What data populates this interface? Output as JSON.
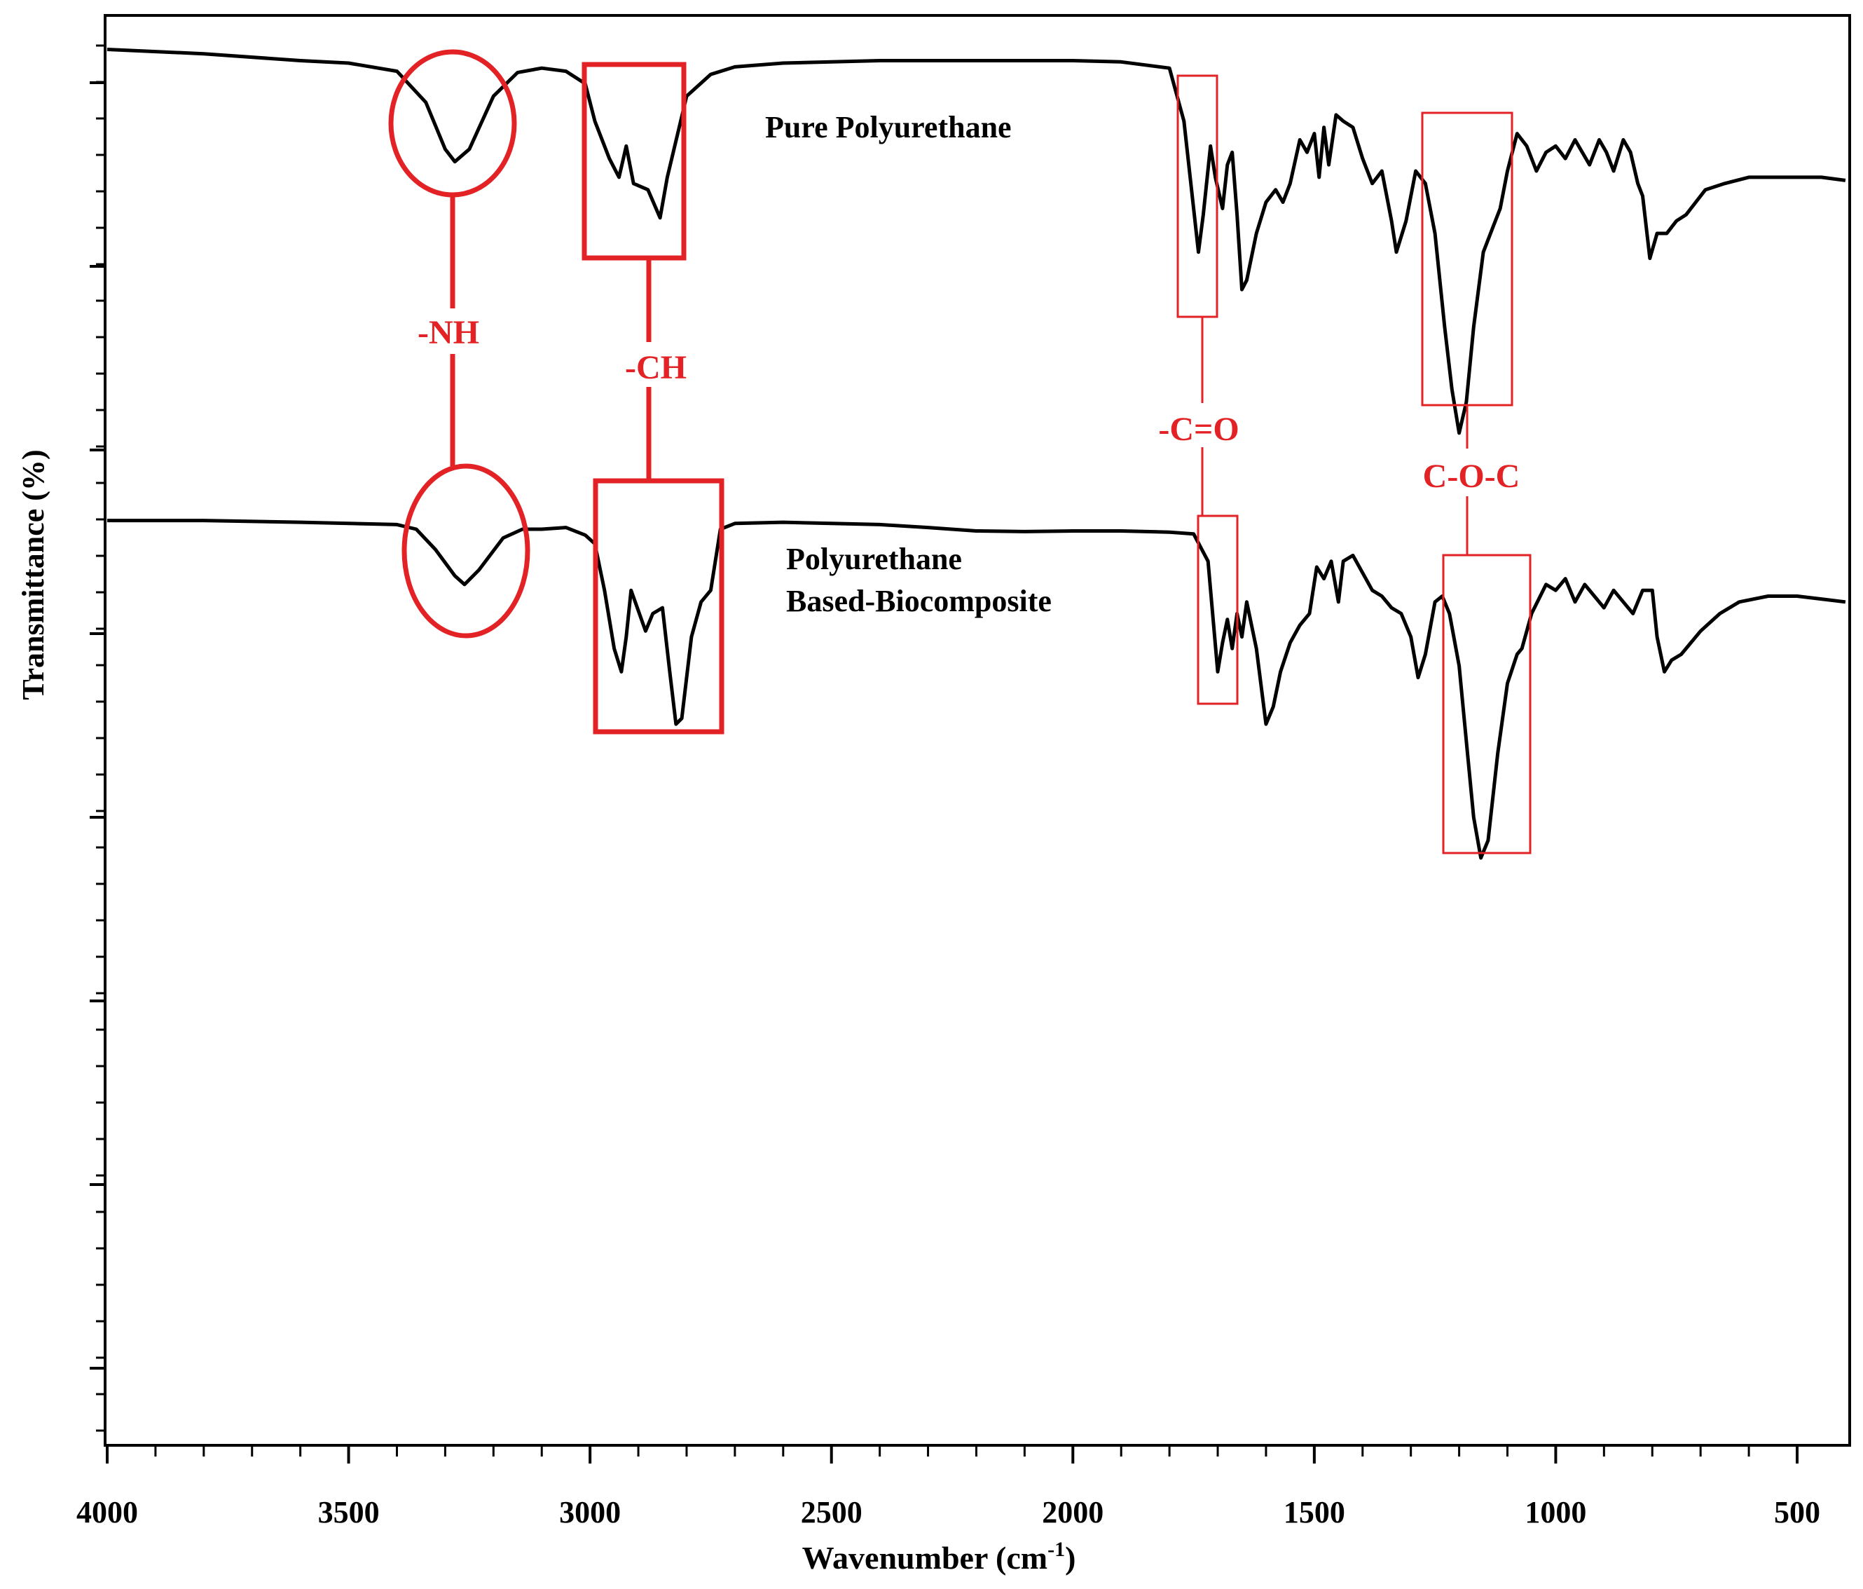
{
  "chart_data": {
    "type": "line",
    "title": "",
    "xlabel": "Wavenumber (cm",
    "xlabel_superscript": "-1",
    "xlabel_close": ")",
    "ylabel": "Transmittance (%)",
    "xlim": [
      4000,
      400
    ],
    "x_reversed": true,
    "x_tick_labels": [
      "4000",
      "3500",
      "3000",
      "2500",
      "2000",
      "1500",
      "1000",
      "500"
    ],
    "x_tick_values": [
      4000,
      3500,
      3000,
      2500,
      2000,
      1500,
      1000,
      500
    ],
    "y_tick_labels_shown": false,
    "grid": false,
    "legend": "none",
    "series": [
      {
        "name": "Pure Polyurethane",
        "color": "#000000",
        "label_lines": [
          "Pure Polyurethane"
        ],
        "points": [
          [
            4000,
            0.5
          ],
          [
            3800,
            1.2
          ],
          [
            3600,
            2.3
          ],
          [
            3500,
            2.7
          ],
          [
            3400,
            4.0
          ],
          [
            3340,
            9.0
          ],
          [
            3300,
            16.5
          ],
          [
            3280,
            18.5
          ],
          [
            3250,
            16.5
          ],
          [
            3200,
            8.0
          ],
          [
            3150,
            4.2
          ],
          [
            3100,
            3.5
          ],
          [
            3050,
            4.0
          ],
          [
            3010,
            6.0
          ],
          [
            2990,
            12.0
          ],
          [
            2960,
            18.0
          ],
          [
            2940,
            21.0
          ],
          [
            2925,
            16.0
          ],
          [
            2910,
            22.0
          ],
          [
            2880,
            23.0
          ],
          [
            2855,
            27.5
          ],
          [
            2840,
            21.0
          ],
          [
            2800,
            8.0
          ],
          [
            2750,
            4.5
          ],
          [
            2700,
            3.3
          ],
          [
            2600,
            2.7
          ],
          [
            2500,
            2.5
          ],
          [
            2400,
            2.3
          ],
          [
            2200,
            2.3
          ],
          [
            2000,
            2.3
          ],
          [
            1900,
            2.5
          ],
          [
            1800,
            3.5
          ],
          [
            1770,
            12.0
          ],
          [
            1740,
            33.0
          ],
          [
            1730,
            27.0
          ],
          [
            1715,
            16.0
          ],
          [
            1705,
            21.0
          ],
          [
            1690,
            26.0
          ],
          [
            1680,
            19.0
          ],
          [
            1670,
            17.0
          ],
          [
            1660,
            27.0
          ],
          [
            1650,
            39.0
          ],
          [
            1640,
            37.5
          ],
          [
            1620,
            30.0
          ],
          [
            1600,
            25.0
          ],
          [
            1580,
            23.0
          ],
          [
            1565,
            25.0
          ],
          [
            1550,
            22.0
          ],
          [
            1530,
            15.0
          ],
          [
            1515,
            17.0
          ],
          [
            1500,
            14.0
          ],
          [
            1490,
            21.0
          ],
          [
            1480,
            13.0
          ],
          [
            1470,
            19.0
          ],
          [
            1455,
            11.0
          ],
          [
            1440,
            12.0
          ],
          [
            1420,
            13.0
          ],
          [
            1400,
            18.0
          ],
          [
            1380,
            22.0
          ],
          [
            1360,
            20.0
          ],
          [
            1340,
            28.0
          ],
          [
            1330,
            33.0
          ],
          [
            1310,
            28.0
          ],
          [
            1290,
            20.0
          ],
          [
            1270,
            22.0
          ],
          [
            1250,
            30.0
          ],
          [
            1230,
            45.0
          ],
          [
            1215,
            55.0
          ],
          [
            1200,
            62.0
          ],
          [
            1185,
            57.0
          ],
          [
            1170,
            45.0
          ],
          [
            1150,
            33.0
          ],
          [
            1130,
            29.0
          ],
          [
            1115,
            26.0
          ],
          [
            1100,
            20.0
          ],
          [
            1080,
            14.0
          ],
          [
            1060,
            16.0
          ],
          [
            1040,
            20.0
          ],
          [
            1020,
            17.0
          ],
          [
            1000,
            16.0
          ],
          [
            980,
            18.0
          ],
          [
            960,
            15.0
          ],
          [
            945,
            17.0
          ],
          [
            930,
            19.0
          ],
          [
            910,
            15.0
          ],
          [
            895,
            17.0
          ],
          [
            880,
            20.0
          ],
          [
            860,
            15.0
          ],
          [
            845,
            17.0
          ],
          [
            830,
            22.0
          ],
          [
            820,
            24.0
          ],
          [
            805,
            34.0
          ],
          [
            790,
            30.0
          ],
          [
            770,
            30.0
          ],
          [
            750,
            28.0
          ],
          [
            730,
            27.0
          ],
          [
            710,
            25.0
          ],
          [
            690,
            23.0
          ],
          [
            650,
            22.0
          ],
          [
            600,
            21.0
          ],
          [
            550,
            21.0
          ],
          [
            500,
            21.0
          ],
          [
            450,
            21.0
          ],
          [
            400,
            21.5
          ]
        ]
      },
      {
        "name": "Polyurethane Based-Biocomposite",
        "color": "#000000",
        "label_lines": [
          "Polyurethane",
          "Based-Biocomposite"
        ],
        "points": [
          [
            4000,
            2.0
          ],
          [
            3800,
            2.0
          ],
          [
            3600,
            2.3
          ],
          [
            3400,
            2.7
          ],
          [
            3360,
            3.5
          ],
          [
            3320,
            7.0
          ],
          [
            3280,
            11.5
          ],
          [
            3260,
            13.0
          ],
          [
            3230,
            10.5
          ],
          [
            3180,
            5.0
          ],
          [
            3140,
            3.5
          ],
          [
            3100,
            3.5
          ],
          [
            3050,
            3.2
          ],
          [
            3010,
            4.5
          ],
          [
            2990,
            6.0
          ],
          [
            2970,
            14.0
          ],
          [
            2950,
            24.0
          ],
          [
            2935,
            28.0
          ],
          [
            2925,
            22.0
          ],
          [
            2915,
            14.0
          ],
          [
            2900,
            17.5
          ],
          [
            2885,
            21.0
          ],
          [
            2870,
            18.0
          ],
          [
            2850,
            17.0
          ],
          [
            2835,
            28.0
          ],
          [
            2822,
            37.0
          ],
          [
            2810,
            36.0
          ],
          [
            2790,
            22.0
          ],
          [
            2770,
            16.0
          ],
          [
            2750,
            14.0
          ],
          [
            2730,
            3.5
          ],
          [
            2700,
            2.5
          ],
          [
            2600,
            2.3
          ],
          [
            2500,
            2.5
          ],
          [
            2400,
            2.7
          ],
          [
            2300,
            3.2
          ],
          [
            2200,
            3.8
          ],
          [
            2100,
            3.9
          ],
          [
            2000,
            3.8
          ],
          [
            1900,
            3.8
          ],
          [
            1800,
            4.0
          ],
          [
            1750,
            4.3
          ],
          [
            1720,
            9.0
          ],
          [
            1700,
            28.0
          ],
          [
            1690,
            23.0
          ],
          [
            1680,
            19.0
          ],
          [
            1670,
            24.0
          ],
          [
            1660,
            18.0
          ],
          [
            1650,
            22.0
          ],
          [
            1640,
            16.0
          ],
          [
            1620,
            24.0
          ],
          [
            1600,
            37.0
          ],
          [
            1585,
            34.0
          ],
          [
            1570,
            28.0
          ],
          [
            1550,
            23.0
          ],
          [
            1530,
            20.0
          ],
          [
            1510,
            18.0
          ],
          [
            1495,
            10.0
          ],
          [
            1480,
            12.0
          ],
          [
            1465,
            9.0
          ],
          [
            1450,
            16.0
          ],
          [
            1440,
            9.0
          ],
          [
            1420,
            8.0
          ],
          [
            1400,
            11.0
          ],
          [
            1380,
            14.0
          ],
          [
            1360,
            15.0
          ],
          [
            1340,
            17.0
          ],
          [
            1320,
            18.0
          ],
          [
            1300,
            22.0
          ],
          [
            1285,
            29.0
          ],
          [
            1270,
            25.0
          ],
          [
            1250,
            16.0
          ],
          [
            1235,
            15.0
          ],
          [
            1220,
            18.0
          ],
          [
            1200,
            27.0
          ],
          [
            1185,
            40.0
          ],
          [
            1170,
            53.0
          ],
          [
            1155,
            60.0
          ],
          [
            1140,
            57.0
          ],
          [
            1120,
            42.0
          ],
          [
            1100,
            30.0
          ],
          [
            1080,
            25.0
          ],
          [
            1070,
            24.0
          ],
          [
            1050,
            18.0
          ],
          [
            1020,
            13.0
          ],
          [
            1000,
            14.0
          ],
          [
            980,
            12.0
          ],
          [
            960,
            16.0
          ],
          [
            940,
            13.0
          ],
          [
            920,
            15.0
          ],
          [
            900,
            17.0
          ],
          [
            880,
            14.0
          ],
          [
            860,
            16.0
          ],
          [
            840,
            18.0
          ],
          [
            820,
            14.0
          ],
          [
            800,
            14.0
          ],
          [
            790,
            22.0
          ],
          [
            775,
            28.0
          ],
          [
            760,
            26.0
          ],
          [
            740,
            25.0
          ],
          [
            720,
            23.0
          ],
          [
            700,
            21.0
          ],
          [
            660,
            18.0
          ],
          [
            620,
            16.0
          ],
          [
            560,
            15.0
          ],
          [
            500,
            15.0
          ],
          [
            450,
            15.5
          ],
          [
            400,
            16.0
          ]
        ]
      }
    ],
    "annotations": [
      {
        "label": "-NH",
        "color": "#e32226",
        "shape": "ellipse",
        "x_range": [
          3340,
          3200
        ]
      },
      {
        "label": "-CH",
        "color": "#e32226",
        "shape": "box",
        "x_range": [
          3010,
          2760
        ]
      },
      {
        "label": "-C=O",
        "color": "#e32226",
        "shape": "thin-box",
        "x_range": [
          1770,
          1670
        ]
      },
      {
        "label": "C-O-C",
        "color": "#e32226",
        "shape": "thin-box",
        "x_range": [
          1270,
          1060
        ]
      }
    ]
  }
}
